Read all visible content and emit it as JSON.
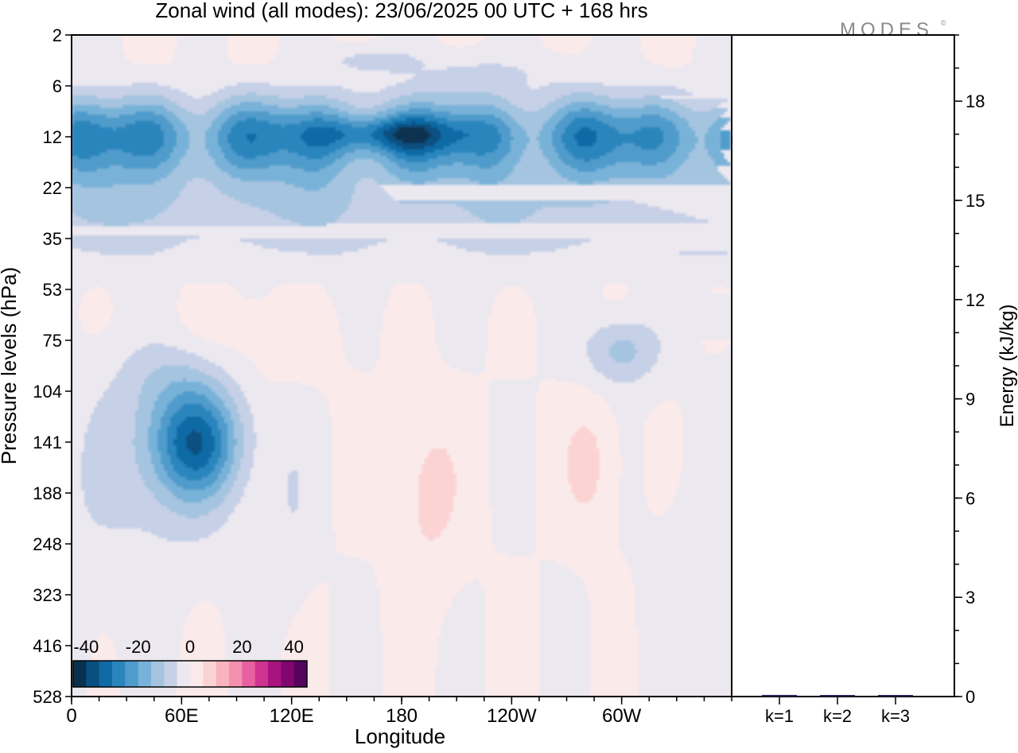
{
  "chart_data": [
    {
      "type": "heatmap",
      "title": "Zonal wind (all modes):  23/06/2025  00 UTC  + 168 hrs",
      "xlabel": "Longitude",
      "ylabel": "Pressure levels (hPa)",
      "x_ticks": [
        "0",
        "60E",
        "120E",
        "180",
        "120W",
        "60W"
      ],
      "x_tick_degrees": [
        0,
        60,
        120,
        180,
        240,
        300
      ],
      "xlim_degrees": [
        0,
        360
      ],
      "y_ticks": [
        "2",
        "6",
        "12",
        "22",
        "35",
        "53",
        "75",
        "104",
        "141",
        "188",
        "248",
        "323",
        "416",
        "528"
      ],
      "y_scale": "pressure levels, top to bottom",
      "colorbar": {
        "tick_labels": [
          "-40",
          "-20",
          "0",
          "20",
          "40"
        ],
        "levels": [
          -40,
          -35,
          -30,
          -25,
          -20,
          -15,
          -10,
          -5,
          0,
          5,
          10,
          15,
          20,
          25,
          30,
          35,
          40
        ],
        "colors": [
          "#08304f",
          "#0a4f80",
          "#0f6aa5",
          "#2a85bd",
          "#4f9bcb",
          "#79b2d8",
          "#a4c4e0",
          "#c6d0e6",
          "#ece8f0",
          "#fbeaea",
          "#fbd3d3",
          "#f8b3bd",
          "#f48fb0",
          "#e8609f",
          "#d0338f",
          "#a81380",
          "#80056f",
          "#55035c"
        ],
        "placement": "bottom-left inside plot"
      },
      "features": [
        {
          "kind": "easterly band",
          "from_hPa": 6,
          "to_hPa": 50,
          "min_ms": -40,
          "core_hPa": 12,
          "core_lon": [
            145,
            200
          ]
        },
        {
          "kind": "easterly jet",
          "core_hPa": 141,
          "core_lon": 68,
          "min_ms": -30
        },
        {
          "kind": "easterly patch",
          "core_hPa": 80,
          "core_lon": 300,
          "min_ms": -10
        },
        {
          "kind": "weak westerly",
          "core_hPa": 188,
          "core_lon": 195,
          "max_ms": 5
        },
        {
          "kind": "weak westerly",
          "core_hPa": 160,
          "core_lon": 282,
          "max_ms": 5
        }
      ]
    },
    {
      "type": "bar",
      "ylabel": "Energy (kJ/kg)",
      "categories": [
        "k=1",
        "k=2",
        "k=3"
      ],
      "values": [
        0.05,
        0.03,
        0.02
      ],
      "ylim": [
        0,
        20
      ],
      "y_ticks": [
        0,
        3,
        6,
        9,
        12,
        15,
        18
      ],
      "bar_color": "#2b2356"
    }
  ],
  "watermark": "MODES",
  "watermark_mark": "©"
}
